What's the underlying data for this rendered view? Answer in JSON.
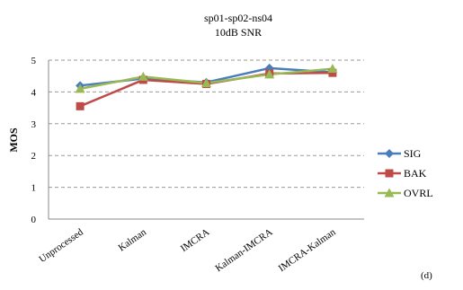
{
  "chart_data": {
    "type": "line",
    "title": [
      "sp01-sp02-ns04",
      "10dB SNR"
    ],
    "ylabel": "MOS",
    "xlabel": "",
    "categories": [
      "Unprocessed",
      "Kalman",
      "IMCRA",
      "Kalman-IMCRA",
      "IMCRA-Kalman"
    ],
    "yticks": [
      "0",
      "1",
      "2",
      "3",
      "4",
      "5"
    ],
    "ylim": [
      0,
      5
    ],
    "grid": "horizontal-dashed",
    "legend_position": "right",
    "series": [
      {
        "name": "SIG",
        "values": [
          4.2,
          4.42,
          4.3,
          4.75,
          4.62
        ],
        "color": "#4a7ebb",
        "marker": "diamond"
      },
      {
        "name": "BAK",
        "values": [
          3.55,
          4.38,
          4.25,
          4.58,
          4.6
        ],
        "color": "#be4b48",
        "marker": "square"
      },
      {
        "name": "OVRL",
        "values": [
          4.1,
          4.48,
          4.28,
          4.55,
          4.73
        ],
        "color": "#98b954",
        "marker": "triangle"
      }
    ],
    "panel_label": "(d)"
  }
}
